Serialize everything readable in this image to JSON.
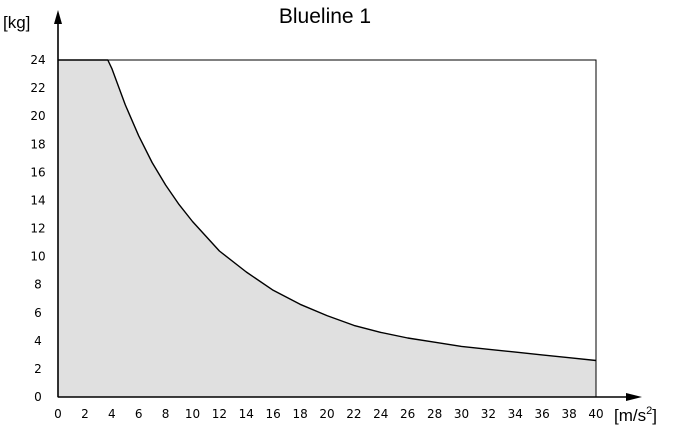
{
  "chart_data": {
    "type": "area",
    "title": "Blueline 1",
    "ylabel": "[kg]",
    "xlabel_base": "[m/s",
    "xlabel_sup": "2",
    "xlabel_end": "]",
    "xlim": [
      0,
      40
    ],
    "ylim": [
      0,
      24
    ],
    "x_ticks": [
      0,
      2,
      4,
      6,
      8,
      10,
      12,
      14,
      16,
      18,
      20,
      22,
      24,
      26,
      28,
      30,
      32,
      34,
      36,
      38,
      40
    ],
    "y_ticks": [
      0,
      2,
      4,
      6,
      8,
      10,
      12,
      14,
      16,
      18,
      20,
      22,
      24
    ],
    "grid": false,
    "series": [
      {
        "x": [
          0,
          3.7,
          4,
          5,
          6,
          7,
          8,
          9,
          10,
          12,
          14,
          16,
          18,
          20,
          22,
          24,
          26,
          28,
          30,
          32,
          34,
          36,
          38,
          40
        ],
        "values": [
          24,
          24,
          23.4,
          20.8,
          18.6,
          16.7,
          15.1,
          13.7,
          12.5,
          10.4,
          8.9,
          7.6,
          6.6,
          5.8,
          5.1,
          4.6,
          4.2,
          3.9,
          3.6,
          3.4,
          3.2,
          3.0,
          2.8,
          2.6
        ]
      }
    ],
    "colors": {
      "fill": "#e0e0e0",
      "line": "#000000"
    }
  }
}
